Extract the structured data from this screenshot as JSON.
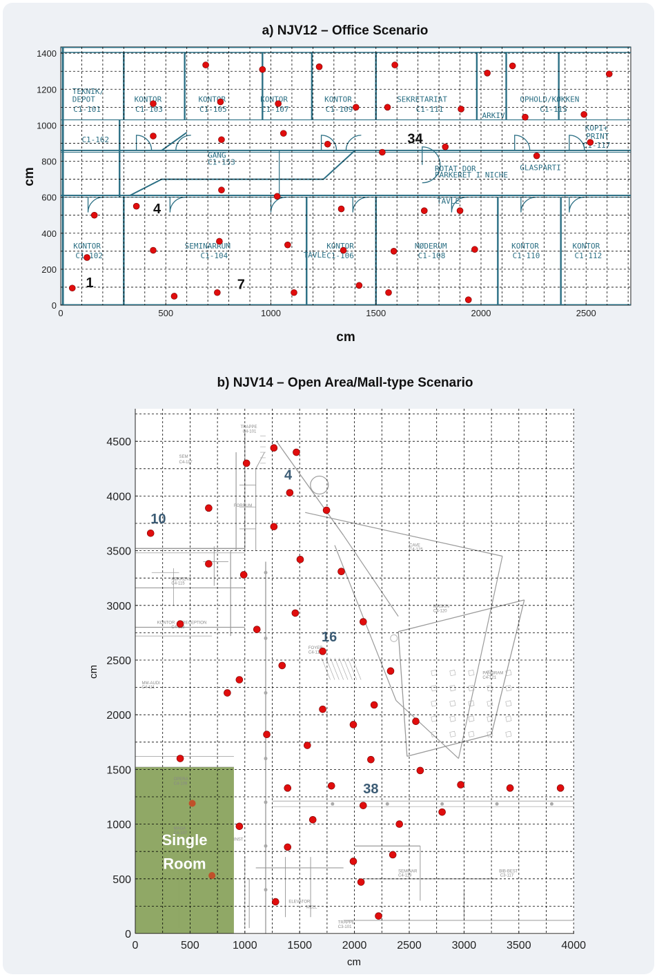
{
  "panel_a": {
    "title": "a) NJV12 – Office Scenario",
    "xlabel": "cm",
    "ylabel": "cm",
    "xticks": [
      "0",
      "500",
      "1000",
      "1500",
      "2000",
      "2500"
    ],
    "yticks": [
      "0",
      "200",
      "400",
      "600",
      "800",
      "1000",
      "1200",
      "1400"
    ],
    "annotations": [
      {
        "text": "1",
        "x": 120,
        "y": 100
      },
      {
        "text": "4",
        "x": 440,
        "y": 510
      },
      {
        "text": "7",
        "x": 840,
        "y": 90
      },
      {
        "text": "34",
        "x": 1650,
        "y": 900
      }
    ],
    "rooms": [
      {
        "t": "TEKNIK/",
        "x": 55,
        "y": 1175
      },
      {
        "t": "DEPOT",
        "x": 55,
        "y": 1130
      },
      {
        "t": "C1-101",
        "x": 60,
        "y": 1075
      },
      {
        "t": "KONTOR",
        "x": 350,
        "y": 1130
      },
      {
        "t": "C1-103",
        "x": 355,
        "y": 1075
      },
      {
        "t": "KONTOR",
        "x": 655,
        "y": 1130
      },
      {
        "t": "C1-105",
        "x": 660,
        "y": 1075
      },
      {
        "t": "KONTOR",
        "x": 950,
        "y": 1130
      },
      {
        "t": "C1-107",
        "x": 955,
        "y": 1075
      },
      {
        "t": "KONTOR",
        "x": 1255,
        "y": 1130
      },
      {
        "t": "C1-109",
        "x": 1260,
        "y": 1075
      },
      {
        "t": "SEKRETARIAT",
        "x": 1600,
        "y": 1130
      },
      {
        "t": "C1-111",
        "x": 1690,
        "y": 1075
      },
      {
        "t": "ARKIV",
        "x": 2005,
        "y": 1040
      },
      {
        "t": "OPHOLD/KØKKEN",
        "x": 2185,
        "y": 1130
      },
      {
        "t": "C1-115",
        "x": 2280,
        "y": 1075
      },
      {
        "t": "KOPI+",
        "x": 2495,
        "y": 970
      },
      {
        "t": "PRINT",
        "x": 2500,
        "y": 925
      },
      {
        "t": "C1-117",
        "x": 2485,
        "y": 875
      },
      {
        "t": "GANG",
        "x": 700,
        "y": 820
      },
      {
        "t": "C1-153",
        "x": 700,
        "y": 780
      },
      {
        "t": "C1-162",
        "x": 100,
        "y": 905
      },
      {
        "t": "ROTAT DOR",
        "x": 1780,
        "y": 745
      },
      {
        "t": "PARKERET I NICHE",
        "x": 1780,
        "y": 710
      },
      {
        "t": "TAVLE",
        "x": 1790,
        "y": 565
      },
      {
        "t": "GLASPARTI",
        "x": 2185,
        "y": 750
      },
      {
        "t": "KONTOR",
        "x": 60,
        "y": 315
      },
      {
        "t": "C1-102",
        "x": 70,
        "y": 260
      },
      {
        "t": "SEMINARRUM",
        "x": 590,
        "y": 315
      },
      {
        "t": "C1-104",
        "x": 665,
        "y": 260
      },
      {
        "t": "TAVLE",
        "x": 1155,
        "y": 265
      },
      {
        "t": "KONTOR",
        "x": 1265,
        "y": 315
      },
      {
        "t": "C1-106",
        "x": 1265,
        "y": 260
      },
      {
        "t": "MØDERUM",
        "x": 1685,
        "y": 315
      },
      {
        "t": "C1-108",
        "x": 1700,
        "y": 260
      },
      {
        "t": "KONTOR",
        "x": 2145,
        "y": 315
      },
      {
        "t": "C1-110",
        "x": 2150,
        "y": 260
      },
      {
        "t": "KONTOR",
        "x": 2435,
        "y": 315
      },
      {
        "t": "C1-112",
        "x": 2445,
        "y": 260
      }
    ]
  },
  "panel_b": {
    "title": "b) NJV14 – Open Area/Mall-type Scenario",
    "xlabel": "cm",
    "ylabel": "cm",
    "xticks": [
      "0",
      "500",
      "1000",
      "1500",
      "2000",
      "2500",
      "3000",
      "3500",
      "4000"
    ],
    "yticks": [
      "0",
      "500",
      "1000",
      "1500",
      "2000",
      "2500",
      "3000",
      "3500",
      "4000",
      "4500"
    ],
    "annotations": [
      {
        "text": "4",
        "x": 1360,
        "y": 4150
      },
      {
        "text": "10",
        "x": 140,
        "y": 3750
      },
      {
        "text": "16",
        "x": 1700,
        "y": 2670
      },
      {
        "text": "38",
        "x": 2080,
        "y": 1280
      }
    ],
    "single_room_label": [
      "Single",
      "Room"
    ],
    "rooms": [
      {
        "t": "SEM",
        "x": 400,
        "y": 4350
      },
      {
        "t": "C4-117",
        "x": 400,
        "y": 4300
      },
      {
        "t": "TRAPPE",
        "x": 960,
        "y": 4620
      },
      {
        "t": "C4-101",
        "x": 980,
        "y": 4580
      },
      {
        "t": "FORRUM",
        "x": 900,
        "y": 3900
      },
      {
        "t": "KØKKEN",
        "x": 330,
        "y": 3230
      },
      {
        "t": "C4-115",
        "x": 330,
        "y": 3190
      },
      {
        "t": "KONTOR",
        "x": 200,
        "y": 2830
      },
      {
        "t": "RECEPTION",
        "x": 430,
        "y": 2830
      },
      {
        "t": "C4-113",
        "x": 330,
        "y": 2790
      },
      {
        "t": "MM-AUDI",
        "x": 60,
        "y": 2280
      },
      {
        "t": "C4-111",
        "x": 60,
        "y": 2240
      },
      {
        "t": "FOYER",
        "x": 1580,
        "y": 2600
      },
      {
        "t": "C4-118",
        "x": 1580,
        "y": 2560
      },
      {
        "t": "CAVE",
        "x": 2500,
        "y": 3540
      },
      {
        "t": "C4-125",
        "x": 2500,
        "y": 3500
      },
      {
        "t": "MASKIN",
        "x": 2720,
        "y": 2980
      },
      {
        "t": "C4-120",
        "x": 2720,
        "y": 2940
      },
      {
        "t": "PANORAM",
        "x": 3170,
        "y": 2370
      },
      {
        "t": "C4-121",
        "x": 3170,
        "y": 2330
      },
      {
        "t": "OPERA",
        "x": 350,
        "y": 1400
      },
      {
        "t": "C4-109",
        "x": 350,
        "y": 1360
      },
      {
        "t": "MAGA",
        "x": 350,
        "y": 950
      },
      {
        "t": "C4-107",
        "x": 350,
        "y": 910
      },
      {
        "t": "INST",
        "x": 900,
        "y": 850
      },
      {
        "t": "TRAPPE",
        "x": 1850,
        "y": 90
      },
      {
        "t": "C3-101",
        "x": 1850,
        "y": 50
      },
      {
        "t": "ELEVATOR",
        "x": 1400,
        "y": 280
      },
      {
        "t": "MELL",
        "x": 1560,
        "y": 230
      },
      {
        "t": "SEMINAR",
        "x": 2400,
        "y": 560
      },
      {
        "t": "C4-119",
        "x": 2400,
        "y": 520
      },
      {
        "t": "BIB-BEST",
        "x": 3320,
        "y": 560
      },
      {
        "t": "C3-117",
        "x": 3330,
        "y": 520
      }
    ]
  },
  "colors": {
    "card": "#eef1f5",
    "plan": "#2b6f84",
    "marker": "#e00d0d",
    "marker_room": "#c0502a",
    "single_room": "#8aa35e"
  }
}
